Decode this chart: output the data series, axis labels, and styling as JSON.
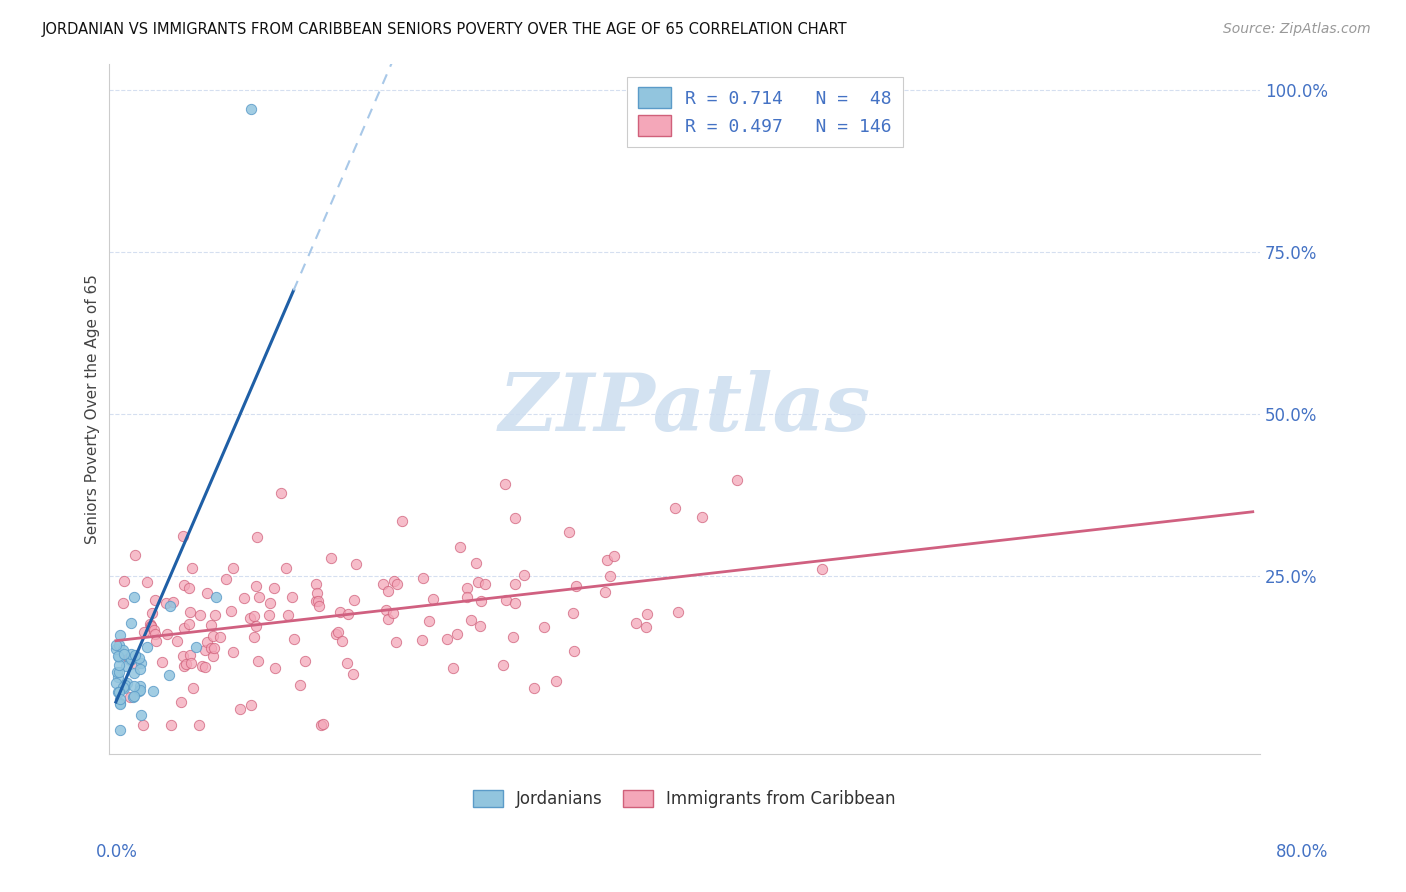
{
  "title": "JORDANIAN VS IMMIGRANTS FROM CARIBBEAN SENIORS POVERTY OVER THE AGE OF 65 CORRELATION CHART",
  "source": "Source: ZipAtlas.com",
  "ylabel": "Seniors Poverty Over the Age of 65",
  "xlim": [
    0.0,
    0.8
  ],
  "ylim": [
    0.0,
    1.0
  ],
  "ytick_vals": [
    0.0,
    0.25,
    0.5,
    0.75,
    1.0
  ],
  "ytick_labels": [
    "",
    "25.0%",
    "50.0%",
    "75.0%",
    "100.0%"
  ],
  "blue_scatter_color": "#92c5de",
  "blue_scatter_edge": "#5b9bc8",
  "pink_scatter_color": "#f4a7b9",
  "pink_scatter_edge": "#d0607a",
  "blue_line_color": "#1f5fa6",
  "blue_dash_color": "#a8c8e8",
  "pink_line_color": "#d06080",
  "legend_text_color": "#4472c4",
  "watermark_color": "#ccddef",
  "grid_color": "#d5dff0",
  "blue_R": "0.714",
  "blue_N": "48",
  "pink_R": "0.497",
  "pink_N": "146",
  "jordan_seed": 77,
  "carib_seed": 99
}
